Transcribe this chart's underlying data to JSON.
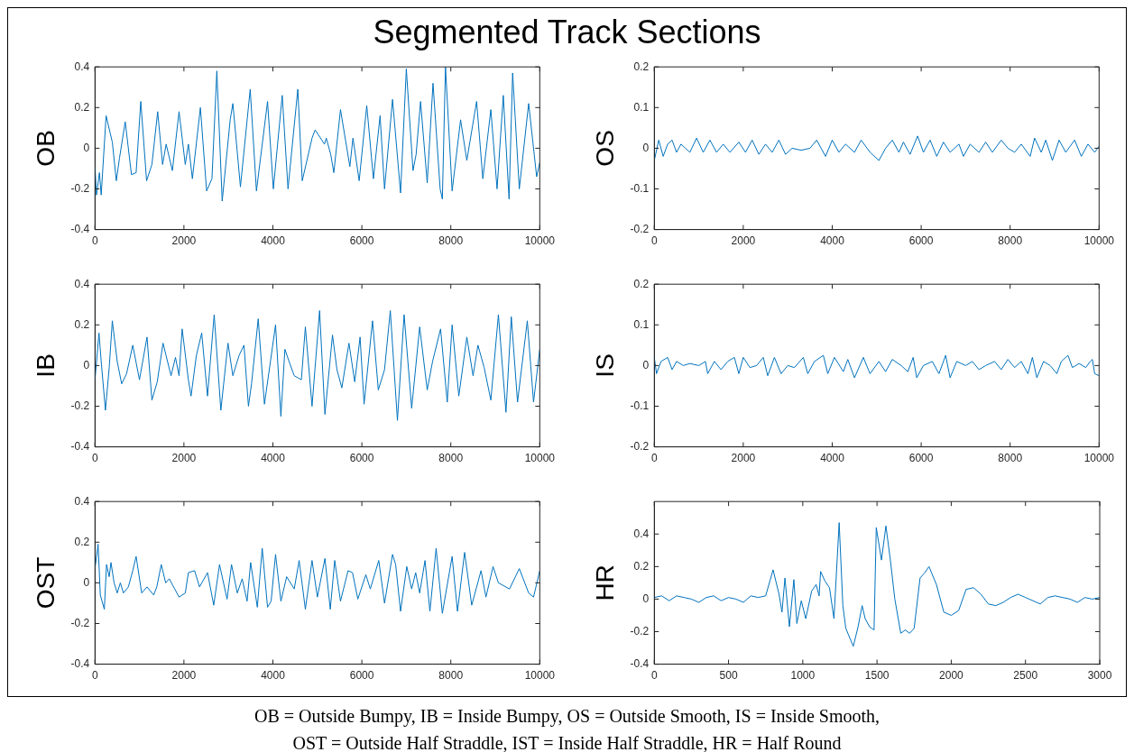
{
  "chart_data": [
    {
      "type": "line",
      "title": "Segmented Track Sections",
      "ylabel": "OB",
      "xlim": [
        0,
        10000
      ],
      "xticks": [
        0,
        2000,
        4000,
        6000,
        8000,
        10000
      ],
      "ylim": [
        -0.4,
        0.4
      ],
      "yticks": [
        -0.4,
        -0.2,
        0,
        0.2,
        0.4
      ],
      "series": [
        {
          "color": "#0072bd",
          "x": [
            0,
            35,
            100,
            140,
            250,
            390,
            480,
            550,
            680,
            820,
            925,
            1030,
            1160,
            1280,
            1410,
            1520,
            1600,
            1740,
            1890,
            2030,
            2100,
            2190,
            2370,
            2510,
            2630,
            2740,
            2860,
            3040,
            3100,
            3270,
            3490,
            3630,
            3880,
            4010,
            4210,
            4340,
            4560,
            4660,
            4880,
            4950,
            5160,
            5200,
            5300,
            5370,
            5520,
            5730,
            5800,
            5940,
            6110,
            6260,
            6410,
            6510,
            6690,
            6870,
            7000,
            7150,
            7220,
            7320,
            7470,
            7600,
            7760,
            7810,
            7880,
            8030,
            8220,
            8360,
            8580,
            8720,
            8900,
            9040,
            9180,
            9310,
            9390,
            9540,
            9750,
            9930,
            10000
          ],
          "values": [
            -0.09,
            -0.23,
            -0.12,
            -0.23,
            0.16,
            0.03,
            -0.16,
            -0.05,
            0.13,
            -0.13,
            -0.12,
            0.23,
            -0.16,
            -0.08,
            0.18,
            -0.08,
            0.02,
            -0.11,
            0.18,
            -0.08,
            0.02,
            -0.15,
            0.2,
            -0.21,
            -0.15,
            0.38,
            -0.26,
            0.14,
            0.22,
            -0.19,
            0.29,
            -0.21,
            0.23,
            -0.2,
            0.26,
            -0.2,
            0.29,
            -0.16,
            0.05,
            0.09,
            0.02,
            0.05,
            -0.03,
            -0.12,
            0.19,
            -0.09,
            0.05,
            -0.16,
            0.21,
            -0.15,
            0.16,
            -0.2,
            0.24,
            -0.22,
            0.39,
            -0.11,
            -0.03,
            0.23,
            -0.17,
            0.32,
            -0.2,
            -0.25,
            0.4,
            -0.21,
            0.14,
            -0.06,
            0.23,
            -0.15,
            0.19,
            -0.2,
            0.26,
            -0.25,
            0.37,
            -0.2,
            0.22,
            -0.14,
            -0.07
          ]
        }
      ]
    },
    {
      "type": "line",
      "ylabel": "OS",
      "xlim": [
        0,
        10000
      ],
      "xticks": [
        0,
        2000,
        4000,
        6000,
        8000,
        10000
      ],
      "ylim": [
        -0.2,
        0.2
      ],
      "yticks": [
        -0.2,
        -0.1,
        0,
        0.1,
        0.2
      ],
      "series": [
        {
          "color": "#0072bd",
          "x": [
            0,
            100,
            200,
            300,
            400,
            500,
            600,
            700,
            800,
            950,
            1100,
            1250,
            1400,
            1550,
            1700,
            1900,
            2050,
            2200,
            2350,
            2500,
            2650,
            2800,
            2950,
            3100,
            3300,
            3500,
            3650,
            3850,
            4000,
            4150,
            4300,
            4500,
            4650,
            4850,
            5050,
            5200,
            5350,
            5500,
            5600,
            5750,
            5920,
            6050,
            6200,
            6350,
            6500,
            6650,
            6850,
            6950,
            7100,
            7300,
            7450,
            7600,
            7800,
            7950,
            8100,
            8250,
            8450,
            8550,
            8700,
            8800,
            8950,
            9100,
            9250,
            9450,
            9600,
            9750,
            9900,
            10000
          ],
          "values": [
            -0.03,
            0.02,
            -0.02,
            0.01,
            0.02,
            -0.01,
            0.01,
            0,
            -0.01,
            0.025,
            -0.01,
            0.02,
            -0.01,
            0.01,
            -0.01,
            0.015,
            -0.01,
            0.02,
            -0.015,
            0.01,
            -0.01,
            0.02,
            -0.015,
            0,
            -0.005,
            0,
            0.02,
            -0.02,
            0.02,
            -0.01,
            0.01,
            -0.01,
            0.02,
            -0.01,
            -0.03,
            0,
            0.02,
            -0.01,
            0.015,
            -0.015,
            0.03,
            -0.01,
            0.02,
            -0.02,
            0.015,
            -0.01,
            0.01,
            -0.02,
            0.01,
            -0.01,
            0.015,
            -0.01,
            0.02,
            0,
            -0.01,
            0.01,
            -0.02,
            0.025,
            -0.01,
            0.02,
            -0.03,
            0.02,
            -0.01,
            0.02,
            -0.02,
            0.01,
            -0.01,
            0.005
          ]
        }
      ]
    },
    {
      "type": "line",
      "ylabel": "IB",
      "xlim": [
        0,
        10000
      ],
      "xticks": [
        0,
        2000,
        4000,
        6000,
        8000,
        10000
      ],
      "ylim": [
        -0.4,
        0.4
      ],
      "yticks": [
        -0.4,
        -0.2,
        0,
        0.2,
        0.4
      ],
      "series": [
        {
          "color": "#0072bd",
          "x": [
            0,
            90,
            140,
            235,
            320,
            390,
            500,
            600,
            710,
            850,
            1000,
            1170,
            1280,
            1400,
            1530,
            1710,
            1810,
            1890,
            1960,
            2100,
            2160,
            2280,
            2400,
            2530,
            2680,
            2830,
            2990,
            3100,
            3240,
            3350,
            3450,
            3520,
            3670,
            3810,
            4060,
            4180,
            4270,
            4380,
            4480,
            4640,
            4730,
            4880,
            5050,
            5170,
            5340,
            5440,
            5550,
            5710,
            5840,
            5960,
            6050,
            6240,
            6370,
            6510,
            6640,
            6800,
            6950,
            7120,
            7300,
            7470,
            7590,
            7770,
            7920,
            8030,
            8180,
            8360,
            8500,
            8610,
            8750,
            8900,
            9070,
            9240,
            9360,
            9500,
            9720,
            9860,
            10000
          ],
          "values": [
            -0.07,
            0.16,
            0.02,
            -0.22,
            -0.01,
            0.22,
            0.02,
            -0.09,
            -0.04,
            0.1,
            -0.07,
            0.14,
            -0.17,
            -0.08,
            0.11,
            -0.05,
            0.04,
            -0.05,
            0.18,
            -0.07,
            -0.15,
            0.05,
            0.16,
            -0.15,
            0.25,
            -0.22,
            0.11,
            -0.05,
            0.05,
            0.1,
            -0.2,
            -0.09,
            0.23,
            -0.19,
            0.2,
            -0.25,
            0.08,
            0.01,
            -0.05,
            -0.07,
            0.19,
            -0.2,
            0.27,
            -0.24,
            0.15,
            -0.02,
            -0.11,
            0.11,
            -0.08,
            0.14,
            -0.19,
            0.22,
            -0.12,
            -0.02,
            0.27,
            -0.27,
            0.25,
            -0.21,
            0.19,
            -0.12,
            0.02,
            0.18,
            -0.18,
            0.2,
            -0.15,
            0.14,
            -0.05,
            0.1,
            -0.01,
            -0.17,
            0.25,
            -0.23,
            0.24,
            -0.18,
            0.22,
            -0.18,
            0.08
          ]
        }
      ]
    },
    {
      "type": "line",
      "ylabel": "IS",
      "xlim": [
        0,
        10000
      ],
      "xticks": [
        0,
        2000,
        4000,
        6000,
        8000,
        10000
      ],
      "ylim": [
        -0.2,
        0.2
      ],
      "yticks": [
        -0.2,
        -0.1,
        0,
        0.1,
        0.2
      ],
      "series": [
        {
          "color": "#0072bd",
          "x": [
            0,
            50,
            150,
            300,
            400,
            500,
            650,
            800,
            1000,
            1150,
            1200,
            1350,
            1500,
            1650,
            1800,
            1900,
            2000,
            2150,
            2300,
            2450,
            2550,
            2700,
            2850,
            3000,
            3150,
            3350,
            3450,
            3600,
            3800,
            3900,
            4050,
            4250,
            4350,
            4500,
            4700,
            4850,
            5050,
            5200,
            5350,
            5550,
            5700,
            5820,
            5900,
            6050,
            6250,
            6400,
            6550,
            6650,
            6800,
            7000,
            7150,
            7300,
            7450,
            7650,
            7800,
            7950,
            8100,
            8250,
            8400,
            8500,
            8600,
            8750,
            8900,
            9050,
            9150,
            9300,
            9400,
            9550,
            9700,
            9800,
            9850,
            9900,
            10000
          ],
          "values": [
            0.02,
            -0.02,
            0.01,
            0.02,
            -0.01,
            0.01,
            0,
            0.005,
            0,
            0.01,
            -0.02,
            0.01,
            -0.01,
            0.01,
            0.02,
            -0.02,
            0.02,
            -0.005,
            0,
            0.02,
            -0.025,
            0.02,
            -0.02,
            0,
            -0.005,
            0.02,
            -0.02,
            0.01,
            0.025,
            -0.02,
            0.02,
            -0.015,
            0.015,
            -0.03,
            0.02,
            -0.02,
            0.01,
            -0.015,
            0.015,
            0,
            -0.015,
            0.02,
            -0.03,
            0,
            0.01,
            -0.02,
            0.025,
            -0.03,
            0.01,
            0,
            0.01,
            -0.01,
            0,
            0.01,
            -0.01,
            0.015,
            -0.005,
            0.01,
            -0.02,
            0.02,
            -0.03,
            0.01,
            0,
            -0.02,
            0.01,
            0.025,
            -0.005,
            0.005,
            -0.005,
            0.01,
            0.015,
            -0.02,
            -0.025
          ]
        }
      ]
    },
    {
      "type": "line",
      "ylabel": "OST",
      "xlim": [
        0,
        10000
      ],
      "xticks": [
        0,
        2000,
        4000,
        6000,
        8000,
        10000
      ],
      "ylim": [
        -0.4,
        0.4
      ],
      "yticks": [
        -0.4,
        -0.2,
        0,
        0.2,
        0.4
      ],
      "series": [
        {
          "color": "#0072bd",
          "x": [
            0,
            70,
            120,
            210,
            260,
            320,
            360,
            430,
            500,
            570,
            640,
            750,
            850,
            925,
            1050,
            1170,
            1320,
            1390,
            1490,
            1590,
            1670,
            1890,
            2030,
            2100,
            2240,
            2350,
            2530,
            2670,
            2800,
            2970,
            3070,
            3200,
            3310,
            3420,
            3500,
            3650,
            3760,
            3880,
            3960,
            4060,
            4180,
            4310,
            4480,
            4590,
            4730,
            4880,
            5000,
            5170,
            5290,
            5390,
            5520,
            5690,
            5790,
            5910,
            6090,
            6190,
            6380,
            6510,
            6690,
            6760,
            6870,
            7010,
            7120,
            7210,
            7300,
            7420,
            7530,
            7670,
            7810,
            8030,
            8150,
            8310,
            8470,
            8680,
            8790,
            8950,
            9070,
            9320,
            9540,
            9750,
            9860,
            10000
          ],
          "values": [
            0.07,
            0.19,
            -0.06,
            -0.13,
            0.09,
            0.03,
            0.1,
            0,
            -0.05,
            0,
            -0.05,
            -0.02,
            0.06,
            0.13,
            -0.05,
            -0.02,
            -0.06,
            -0.02,
            0.09,
            0,
            0.02,
            -0.07,
            -0.05,
            0.05,
            0.06,
            -0.02,
            0.05,
            -0.11,
            0.09,
            -0.08,
            0.09,
            -0.05,
            0.02,
            -0.09,
            0.1,
            -0.12,
            0.17,
            -0.12,
            -0.09,
            0.14,
            -0.09,
            0.03,
            -0.03,
            0.11,
            -0.13,
            0.11,
            -0.07,
            0.12,
            -0.13,
            0.11,
            -0.09,
            0.06,
            0.05,
            -0.08,
            0.04,
            -0.03,
            0.11,
            -0.1,
            0.14,
            0.09,
            -0.14,
            0.08,
            -0.03,
            0.05,
            -0.05,
            0.11,
            -0.14,
            0.17,
            -0.15,
            0.13,
            -0.14,
            0.15,
            -0.11,
            0.06,
            -0.07,
            0.08,
            0,
            -0.03,
            0.07,
            -0.05,
            -0.07,
            0.06
          ]
        }
      ]
    },
    {
      "type": "line",
      "ylabel": "HR",
      "xlim": [
        0,
        3000
      ],
      "xticks": [
        0,
        500,
        1000,
        1500,
        2000,
        2500,
        3000
      ],
      "ylim": [
        -0.4,
        0.6
      ],
      "yticks": [
        -0.4,
        -0.2,
        0,
        0.2,
        0.4
      ],
      "annotations": [
        "OB = Outside Bumpy, IB = Inside Bumpy, OS = Outside Smooth, IS = Inside Smooth,",
        "OST = Outside Half Straddle, IST = Inside Half Straddle, HR = Half Round"
      ],
      "series": [
        {
          "color": "#0072bd",
          "x": [
            0,
            50,
            100,
            150,
            200,
            250,
            300,
            350,
            400,
            450,
            500,
            550,
            600,
            650,
            700,
            750,
            800,
            840,
            860,
            880,
            910,
            940,
            960,
            990,
            1020,
            1060,
            1090,
            1110,
            1120,
            1150,
            1180,
            1210,
            1245,
            1270,
            1290,
            1340,
            1370,
            1400,
            1420,
            1450,
            1480,
            1495,
            1530,
            1560,
            1590,
            1620,
            1660,
            1690,
            1720,
            1750,
            1790,
            1820,
            1850,
            1900,
            1950,
            2000,
            2050,
            2100,
            2150,
            2200,
            2250,
            2300,
            2350,
            2400,
            2450,
            2500,
            2550,
            2600,
            2650,
            2700,
            2750,
            2800,
            2850,
            2900,
            2950,
            3000
          ],
          "values": [
            0.01,
            0.02,
            -0.01,
            0.02,
            0.01,
            0,
            -0.02,
            0.01,
            0.02,
            -0.01,
            0.01,
            0,
            -0.02,
            0.02,
            0.01,
            0.02,
            0.18,
            0.03,
            -0.08,
            0.13,
            -0.17,
            0.12,
            -0.15,
            -0.01,
            -0.12,
            0.05,
            0.09,
            0.02,
            0.17,
            0.11,
            0.07,
            -0.12,
            0.47,
            -0.04,
            -0.18,
            -0.29,
            -0.18,
            -0.04,
            -0.12,
            -0.17,
            -0.19,
            0.44,
            0.24,
            0.45,
            0.24,
            0,
            -0.21,
            -0.19,
            -0.21,
            -0.18,
            0.13,
            0.16,
            0.2,
            0.09,
            -0.08,
            -0.1,
            -0.07,
            0.06,
            0.07,
            0.03,
            -0.03,
            -0.04,
            -0.02,
            0.01,
            0.03,
            0.01,
            -0.01,
            -0.03,
            0.01,
            0.02,
            0.01,
            0,
            -0.02,
            0.01,
            0,
            0.01
          ]
        }
      ]
    }
  ]
}
